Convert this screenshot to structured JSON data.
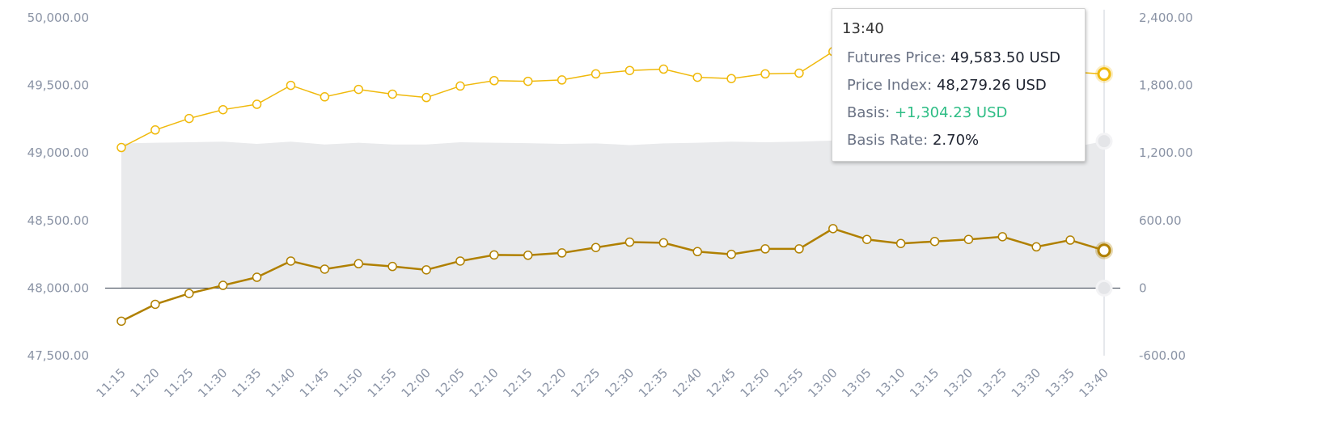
{
  "chart_data": {
    "type": "line",
    "categories": [
      "11:15",
      "11:20",
      "11:25",
      "11:30",
      "11:35",
      "11:40",
      "11:45",
      "11:50",
      "11:55",
      "12:00",
      "12:05",
      "12:10",
      "12:15",
      "12:20",
      "12:25",
      "12:30",
      "12:35",
      "12:40",
      "12:45",
      "12:50",
      "12:55",
      "13:00",
      "13:05",
      "13:10",
      "13:15",
      "13:20",
      "13:25",
      "13:30",
      "13:35",
      "13:40"
    ],
    "left_axis": {
      "ylim": [
        47500,
        50000
      ],
      "ticks": [
        "50,000.00",
        "49,500.00",
        "49,000.00",
        "48,500.00",
        "48,000.00",
        "47,500.00"
      ],
      "tick_values": [
        50000,
        49500,
        49000,
        48500,
        48000,
        47500
      ]
    },
    "right_axis": {
      "ylim": [
        -600,
        2400
      ],
      "ticks": [
        "2,400.00",
        "1,800.00",
        "1,200.00",
        "600.00",
        "0",
        "-600.00"
      ],
      "tick_values": [
        2400,
        1800,
        1200,
        600,
        0,
        -600
      ]
    },
    "series": [
      {
        "name": "Futures Price",
        "axis": "left",
        "color": "#f0b90b",
        "values": [
          49040,
          49170,
          49255,
          49320,
          49360,
          49500,
          49415,
          49470,
          49435,
          49410,
          49495,
          49535,
          49530,
          49540,
          49585,
          49610,
          49620,
          49560,
          49550,
          49585,
          49590,
          49750,
          49655,
          49640,
          49670,
          49710,
          49730,
          49620,
          49600,
          49583.5
        ]
      },
      {
        "name": "Price Index",
        "axis": "left",
        "color": "#b08000",
        "values": [
          47755,
          47880,
          47960,
          48020,
          48080,
          48200,
          48140,
          48180,
          48160,
          48135,
          48200,
          48245,
          48243,
          48260,
          48300,
          48340,
          48335,
          48270,
          48250,
          48290,
          48290,
          48440,
          48360,
          48330,
          48345,
          48360,
          48380,
          48305,
          48355,
          48279.26
        ]
      },
      {
        "name": "Basis",
        "axis": "right",
        "color": "#e9eaec",
        "type": "area",
        "values": [
          1285,
          1290,
          1295,
          1300,
          1280,
          1300,
          1275,
          1290,
          1275,
          1275,
          1295,
          1290,
          1287,
          1280,
          1285,
          1270,
          1285,
          1290,
          1300,
          1295,
          1300,
          1310,
          1295,
          1310,
          1325,
          1350,
          1350,
          1315,
          1245,
          1304.23
        ]
      }
    ],
    "grid": false,
    "baseline": 0
  },
  "tooltip": {
    "time": "13:40",
    "rows": [
      {
        "label": "Futures Price:",
        "value": "49,583.50 USD"
      },
      {
        "label": "Price Index:",
        "value": "48,279.26 USD"
      },
      {
        "label": "Basis:",
        "value": "+1,304.23 USD"
      },
      {
        "label": "Basis Rate:",
        "value": "2.70%"
      }
    ]
  },
  "colors": {
    "futures": "#f0b90b",
    "index": "#b08000",
    "basis_fill": "#e9eaec",
    "axis_text": "#8a93a5",
    "positive": "#2ebd85"
  }
}
